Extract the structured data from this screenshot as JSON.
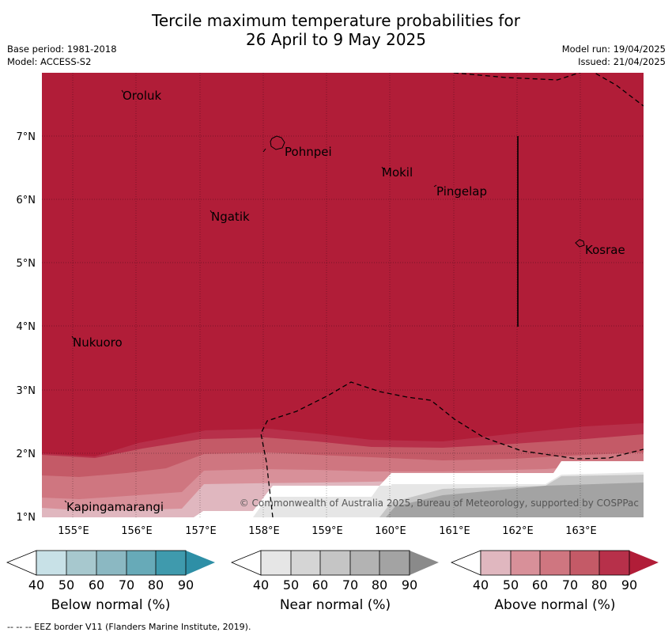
{
  "header": {
    "title_line1": "Tercile maximum temperature probabilities for",
    "title_line2": "26 April to 9 May 2025",
    "base_period": "Base period: 1981-2018",
    "model": "Model: ACCESS-S2",
    "model_run": "Model run: 19/04/2025",
    "issued": "Issued: 21/04/2025"
  },
  "map": {
    "ocean_color": "#b11d38",
    "lat_labels": [
      "7°N",
      "6°N",
      "5°N",
      "4°N",
      "3°N",
      "2°N",
      "1°N"
    ],
    "lon_labels": [
      "155°E",
      "156°E",
      "157°E",
      "158°E",
      "159°E",
      "160°E",
      "161°E",
      "162°E",
      "163°E"
    ],
    "places": [
      "Oroluk",
      "Pohnpei",
      "Mokil",
      "Pingelap",
      "Ngatik",
      "Kosrae",
      "Nukuoro",
      "Kapingamarangi"
    ],
    "copyright": "© Commonwealth of Australia 2025, Bureau of Meteorology, supported by COSPPac"
  },
  "colorbars": [
    {
      "label": "Below normal (%)",
      "colors": [
        "#c8e1e7",
        "#a7c8ce",
        "#8bb8c2",
        "#67aab8",
        "#3f9aad",
        "#2e8fa6"
      ]
    },
    {
      "label": "Near normal (%)",
      "colors": [
        "#e6e6e6",
        "#d5d5d5",
        "#c5c5c5",
        "#b3b3b3",
        "#a3a3a3",
        "#8a8a8a"
      ]
    },
    {
      "label": "Above normal (%)",
      "colors": [
        "#e0b7bf",
        "#d89099",
        "#cf7680",
        "#c45a67",
        "#b7304a",
        "#b11d38"
      ]
    }
  ],
  "colorbar_ticks": [
    "40",
    "50",
    "60",
    "70",
    "80",
    "90"
  ],
  "footer": "--  --  -- EEZ border V11 (Flanders Marine Institute, 2019)."
}
